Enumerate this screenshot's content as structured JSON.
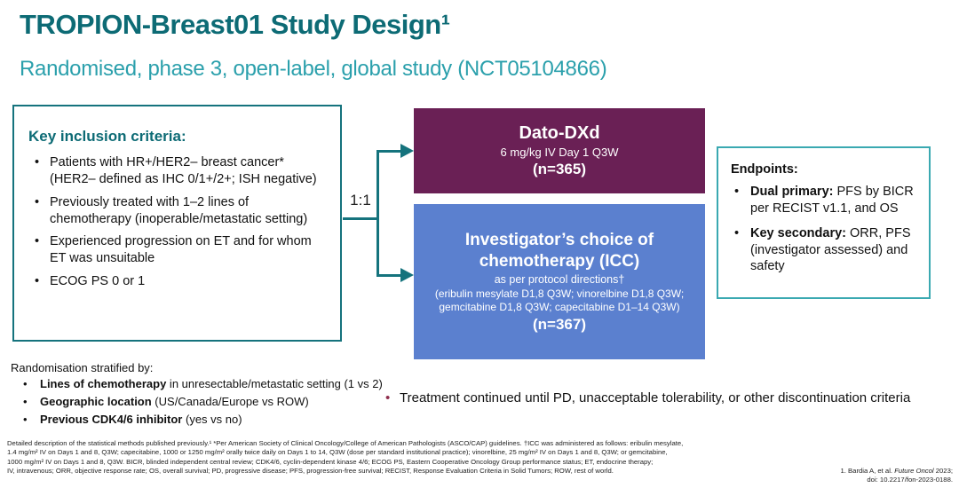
{
  "slide": {
    "title": "TROPION-Breast01 Study Design¹",
    "subtitle": "Randomised, phase 3, open-label, global study (NCT05104866)"
  },
  "inclusion": {
    "heading": "Key inclusion criteria:",
    "bullets": [
      "Patients with HR+/HER2– breast cancer* (HER2– defined as IHC 0/1+/2+; ISH negative)",
      "Previously treated with 1–2 lines of chemotherapy (inoperable/metastatic setting)",
      "Experienced progression on ET and for whom ET was unsuitable",
      "ECOG PS 0 or 1"
    ]
  },
  "randomisation_ratio": "1:1",
  "arms": {
    "dato": {
      "name": "Dato-DXd",
      "dose": "6 mg/kg IV Day 1 Q3W",
      "n": "(n=365)"
    },
    "icc": {
      "name": "Investigator’s choice of chemotherapy (ICC)",
      "subtext": "as per protocol directions†",
      "drugs": "(eribulin mesylate D1,8 Q3W; vinorelbine D1,8 Q3W; gemcitabine D1,8 Q3W; capecitabine D1–14 Q3W)",
      "n": "(n=367)"
    }
  },
  "endpoints": {
    "heading": "Endpoints:",
    "bullets": [
      {
        "lead": "Dual primary:",
        "rest": " PFS by BICR per RECIST v1.1, and OS"
      },
      {
        "lead": "Key secondary:",
        "rest": " ORR, PFS (investigator assessed) and safety"
      }
    ]
  },
  "stratification": {
    "heading": "Randomisation stratified by:",
    "bullets": [
      {
        "lead": "Lines of chemotherapy",
        "rest": " in unresectable/metastatic setting (1 vs 2)"
      },
      {
        "lead": "Geographic location",
        "rest": " (US/Canada/Europe vs ROW)"
      },
      {
        "lead": "Previous CDK4/6 inhibitor",
        "rest": " (yes vs no)"
      }
    ]
  },
  "treatment_note": "Treatment continued until PD, unacceptable tolerability, or other discontinuation criteria",
  "footnotes": {
    "lines": [
      "Detailed description of the statistical methods published previously.¹ *Per American Society of Clinical Oncology/College of American Pathologists (ASCO/CAP) guidelines. †ICC was administered as follows: eribulin mesylate,",
      "1.4 mg/m² IV on Days 1 and 8, Q3W; capecitabine, 1000 or 1250 mg/m² orally twice daily on Days 1 to 14, Q3W (dose per standard institutional practice); vinorelbine, 25 mg/m² IV on Days 1 and 8, Q3W; or gemcitabine,",
      "1000 mg/m² IV on Days 1 and 8, Q3W. BICR, blinded independent central review; CDK4/6, cyclin-dependent kinase 4/6; ECOG PS, Eastern Cooperative Oncology Group performance status; ET, endocrine therapy;",
      "IV, intravenous; ORR, objective response rate; OS, overall survival; PD, progressive disease; PFS, progression-free survival; RECIST, Response Evaluation Criteria in Solid Tumors; ROW, rest of world."
    ]
  },
  "reference": {
    "line1_pre": "1. Bardia A, et al. ",
    "line1_italic": "Future Oncol",
    "line1_post": " 2023;",
    "line2": "doi: 10.2217/fon-2023-0188."
  },
  "colors": {
    "teal_dark": "#0d6b75",
    "teal_light": "#2ba0ac",
    "box_border_teal": "#15737d",
    "dato_maroon": "#6a2055",
    "icc_blue": "#5b80cf",
    "note_bullet_maroon": "#8f2f4e"
  }
}
